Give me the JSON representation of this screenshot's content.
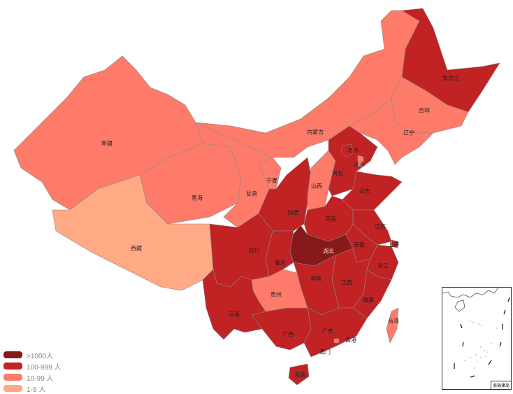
{
  "colors": {
    "over_1000": "#861a1a",
    "range_100_999": "#c12224",
    "range_10_99": "#ff7b69",
    "range_1_9": "#ffaa85"
  },
  "legend": [
    {
      "label": ">1000人",
      "color": "#861a1a"
    },
    {
      "label": "100-999 人",
      "color": "#c12224"
    },
    {
      "label": "10-99 人",
      "color": "#ff7b69"
    },
    {
      "label": "1-9 人",
      "color": "#ffaa85"
    }
  ],
  "provinces": {
    "xinjiang": {
      "name": "新疆",
      "level": "10-99"
    },
    "xizang": {
      "name": "西藏",
      "level": "1-9"
    },
    "qinghai": {
      "name": "青海",
      "level": "10-99"
    },
    "gansu": {
      "name": "甘肃",
      "level": "10-99"
    },
    "neimenggu": {
      "name": "内蒙古",
      "level": "10-99"
    },
    "heilongjiang": {
      "name": "黑龙江",
      "level": "100-999"
    },
    "jilin": {
      "name": "吉林",
      "level": "10-99"
    },
    "liaoning": {
      "name": "辽宁",
      "level": "10-99"
    },
    "ningxia": {
      "name": "宁夏",
      "level": "10-99"
    },
    "shaanxi": {
      "name": "陕西",
      "level": "100-999"
    },
    "shanxi": {
      "name": "山西",
      "level": "10-99"
    },
    "hebei": {
      "name": "河北",
      "level": "100-999"
    },
    "beijing": {
      "name": "北京",
      "level": "100-999"
    },
    "tianjin": {
      "name": "天津",
      "level": "10-99"
    },
    "shandong": {
      "name": "山东",
      "level": "100-999"
    },
    "henan": {
      "name": "河南",
      "level": "100-999"
    },
    "hubei": {
      "name": "湖北",
      "level": ">1000"
    },
    "jiangsu": {
      "name": "江苏",
      "level": "100-999"
    },
    "anhui": {
      "name": "安徽",
      "level": "100-999"
    },
    "shanghai": {
      "name": "上海",
      "level": "100-999"
    },
    "zhejiang": {
      "name": "浙江",
      "level": "100-999"
    },
    "jiangxi": {
      "name": "江西",
      "level": "100-999"
    },
    "fujian": {
      "name": "福建",
      "level": "100-999"
    },
    "hunan": {
      "name": "湖南",
      "level": "100-999"
    },
    "guangdong": {
      "name": "广东",
      "level": "100-999"
    },
    "guangxi": {
      "name": "广西",
      "level": "100-999"
    },
    "hainan": {
      "name": "海南",
      "level": "100-999"
    },
    "guizhou": {
      "name": "贵州",
      "level": "10-99"
    },
    "chongqing": {
      "name": "重庆",
      "level": "100-999"
    },
    "sichuan": {
      "name": "四川",
      "level": "100-999"
    },
    "yunnan": {
      "name": "云南",
      "level": "100-999"
    },
    "taiwan": {
      "name": "台湾",
      "level": "10-99"
    },
    "xianggang": {
      "name": "香港",
      "level": "10-99"
    },
    "aomen": {
      "name": "澳门",
      "level": "1-9"
    }
  },
  "inset": {
    "label": "南海诸岛"
  }
}
